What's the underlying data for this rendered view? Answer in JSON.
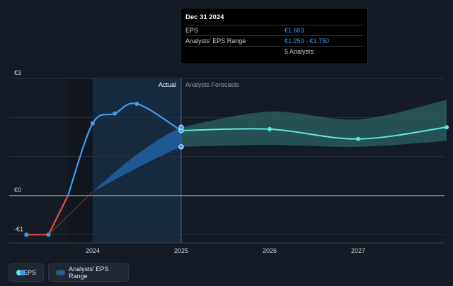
{
  "tooltip": {
    "date": "Dec 31 2024",
    "rows": [
      {
        "label": "EPS",
        "value": "€1.663"
      },
      {
        "label": "Analysts' EPS Range",
        "value": "€1.250 - €1.750"
      },
      {
        "label": "",
        "value": "5 Analysts"
      }
    ]
  },
  "legend": {
    "eps_label": "EPS",
    "range_label": "Analysts' EPS Range"
  },
  "colors": {
    "eps_line": "#3d9cf0",
    "eps_negative": "#e64b4b",
    "forecast_line": "#5ee8e0",
    "forecast_band": "#2c6462",
    "actual_band": "#1f5ea0",
    "background": "#151b24"
  },
  "chart_data": {
    "type": "line",
    "title": "",
    "xlabel": "",
    "ylabel": "",
    "y_ticks": [
      "€3",
      "€0",
      "-€1"
    ],
    "y_tick_values": [
      3,
      0,
      -1
    ],
    "x_ticks": [
      "2024",
      "2025",
      "2026",
      "2027"
    ],
    "x_tick_values": [
      2024.0,
      2025.0,
      2026.0,
      2027.0
    ],
    "ylim": [
      -1,
      3
    ],
    "xlim": [
      2023.0,
      2028.0
    ],
    "region_labels": {
      "actual": "Actual",
      "forecast": "Analysts Forecasts"
    },
    "actual_start": 2024.0,
    "actual_end": 2025.0,
    "series": [
      {
        "name": "EPS",
        "points": [
          {
            "x": 2023.25,
            "y": -1.0
          },
          {
            "x": 2023.5,
            "y": -1.0
          },
          {
            "x": 2024.0,
            "y": 1.85
          },
          {
            "x": 2024.25,
            "y": 2.1
          },
          {
            "x": 2024.5,
            "y": 2.35
          },
          {
            "x": 2025.0,
            "y": 1.663
          }
        ]
      },
      {
        "name": "Analysts' EPS Range",
        "forecast": [
          {
            "x": 2025.0,
            "y": 1.663
          },
          {
            "x": 2026.0,
            "y": 1.7
          },
          {
            "x": 2027.0,
            "y": 1.45
          },
          {
            "x": 2028.0,
            "y": 1.75
          }
        ],
        "range_high": [
          {
            "x": 2025.0,
            "y": 1.75
          },
          {
            "x": 2026.0,
            "y": 2.15
          },
          {
            "x": 2027.0,
            "y": 1.95
          },
          {
            "x": 2028.0,
            "y": 2.45
          }
        ],
        "range_low": [
          {
            "x": 2025.0,
            "y": 1.25
          },
          {
            "x": 2026.0,
            "y": 1.3
          },
          {
            "x": 2027.0,
            "y": 1.25
          },
          {
            "x": 2028.0,
            "y": 1.4
          }
        ]
      }
    ],
    "past_range_high": [
      {
        "x": 2024.0,
        "y": 0.1
      },
      {
        "x": 2025.0,
        "y": 1.75
      }
    ],
    "past_range_low": [
      {
        "x": 2024.0,
        "y": 0.1
      },
      {
        "x": 2025.0,
        "y": 1.25
      }
    ],
    "markers": [
      {
        "series": "EPS",
        "x": 2025.0,
        "y": 1.663
      },
      {
        "series": "EPS",
        "x": 2025.0,
        "y": 1.75
      },
      {
        "series": "EPS",
        "x": 2025.0,
        "y": 1.25
      },
      {
        "series": "forecast",
        "x": 2026.0,
        "y": 1.7
      },
      {
        "series": "forecast",
        "x": 2027.0,
        "y": 1.45
      },
      {
        "series": "forecast",
        "x": 2028.0,
        "y": 1.75
      }
    ],
    "grid": true,
    "legend_position": "bottom-left"
  }
}
